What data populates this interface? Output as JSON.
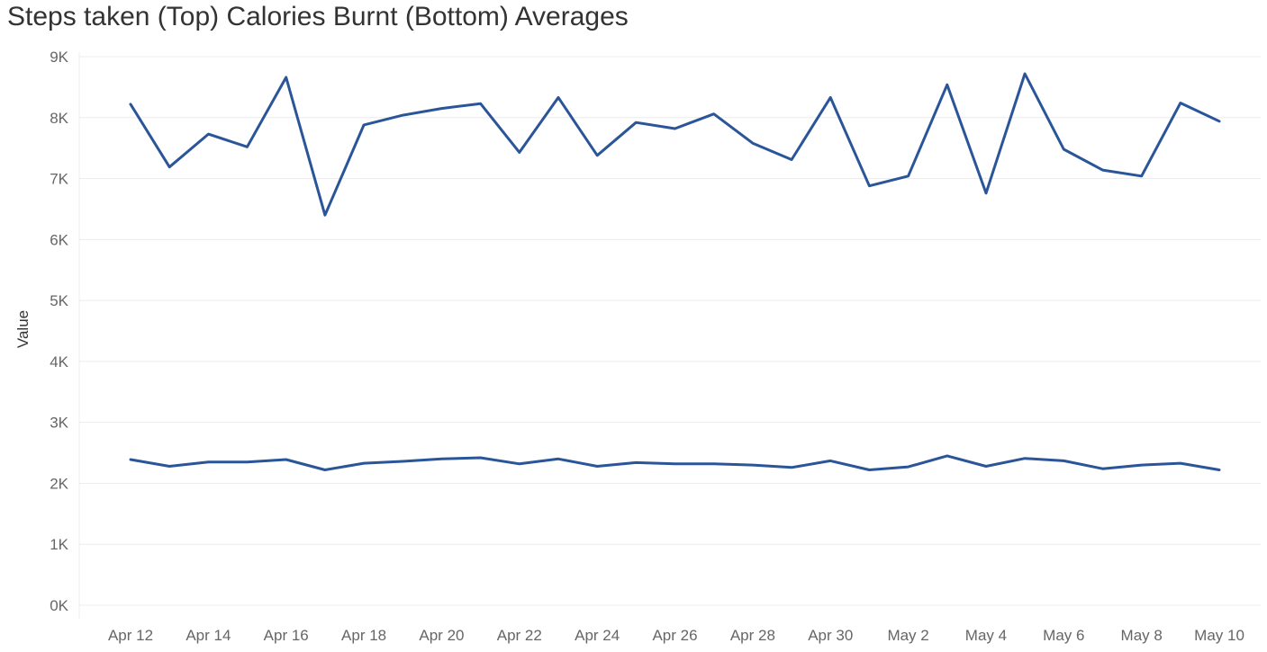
{
  "chart_data": {
    "type": "line",
    "title": "Steps taken (Top) Calories Burnt (Bottom) Averages",
    "xlabel": "",
    "ylabel": "Value",
    "x": [
      "Apr 12",
      "Apr 13",
      "Apr 14",
      "Apr 15",
      "Apr 16",
      "Apr 17",
      "Apr 18",
      "Apr 19",
      "Apr 20",
      "Apr 21",
      "Apr 22",
      "Apr 23",
      "Apr 24",
      "Apr 25",
      "Apr 26",
      "Apr 27",
      "Apr 28",
      "Apr 29",
      "Apr 30",
      "May 1",
      "May 2",
      "May 3",
      "May 4",
      "May 5",
      "May 6",
      "May 7",
      "May 8",
      "May 9",
      "May 10"
    ],
    "x_tick_labels": [
      "Apr 12",
      "Apr 14",
      "Apr 16",
      "Apr 18",
      "Apr 20",
      "Apr 22",
      "Apr 24",
      "Apr 26",
      "Apr 28",
      "Apr 30",
      "May 2",
      "May 4",
      "May 6",
      "May 8",
      "May 10"
    ],
    "y_tick_labels": [
      "0K",
      "1K",
      "2K",
      "3K",
      "4K",
      "5K",
      "6K",
      "7K",
      "8K",
      "9K"
    ],
    "ylim": [
      0,
      9000
    ],
    "grid": true,
    "series": [
      {
        "values": [
          8220,
          7190,
          7730,
          7520,
          8660,
          6400,
          7880,
          8040,
          8150,
          8230,
          7430,
          8330,
          7380,
          7920,
          7820,
          8060,
          7580,
          7310,
          8330,
          6880,
          7040,
          8540,
          6760,
          8720,
          7480,
          7140,
          7040,
          8240,
          7940
        ]
      },
      {
        "values": [
          2390,
          2280,
          2350,
          2350,
          2390,
          2220,
          2330,
          2360,
          2400,
          2420,
          2320,
          2400,
          2280,
          2340,
          2320,
          2320,
          2300,
          2260,
          2370,
          2220,
          2270,
          2450,
          2280,
          2410,
          2370,
          2240,
          2300,
          2330,
          2220
        ]
      }
    ],
    "line_color": "#2a5599"
  }
}
